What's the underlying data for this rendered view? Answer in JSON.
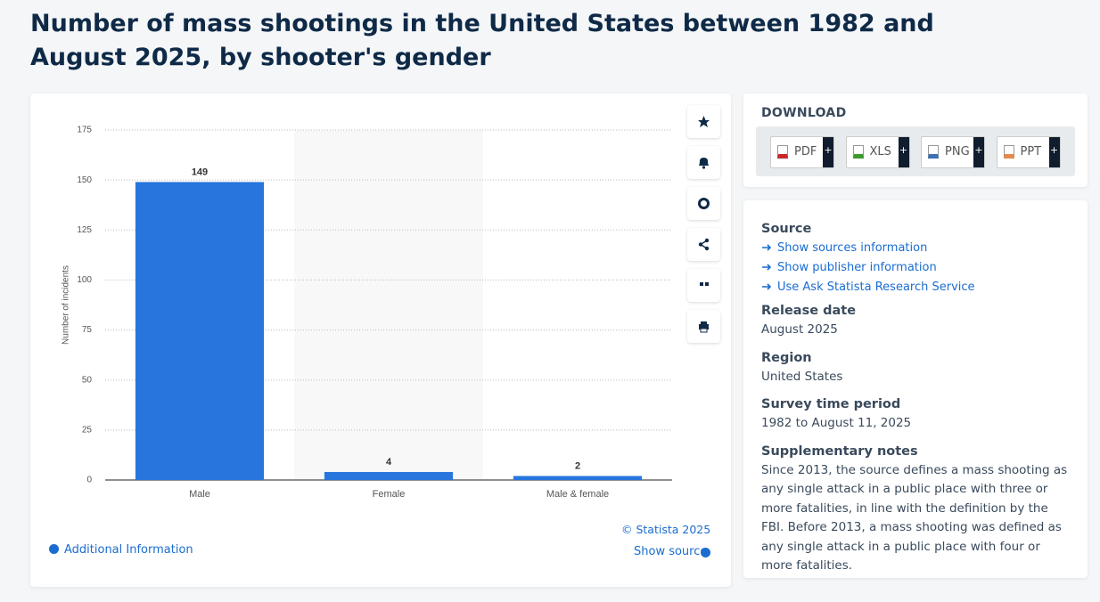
{
  "title": "Number of mass shootings in the United States between 1982 and August 2025, by shooter's gender",
  "chart_data": {
    "type": "bar",
    "y_label": "Number of incidents",
    "categories": [
      "Male",
      "Female",
      "Male & female"
    ],
    "values": [
      149,
      4,
      2
    ],
    "color": "#2876dd",
    "ylim": [
      0,
      175
    ],
    "yticks": [
      0,
      25,
      50,
      75,
      100,
      125,
      150,
      175
    ],
    "grid": true
  },
  "chart_footer": {
    "copyright": "© Statista 2025",
    "show_source": "Show source",
    "additional_info": "Additional Information"
  },
  "download": {
    "heading": "DOWNLOAD",
    "buttons": [
      {
        "label": "PDF",
        "more": "+"
      },
      {
        "label": "XLS",
        "more": "+"
      },
      {
        "label": "PNG",
        "more": "+"
      },
      {
        "label": "PPT",
        "more": "+"
      }
    ]
  },
  "details": {
    "source": {
      "heading": "Source",
      "links": [
        "Show sources information",
        "Show publisher information",
        "Use Ask Statista Research Service"
      ]
    },
    "release_date": {
      "heading": "Release date",
      "text": "August 2025"
    },
    "region": {
      "heading": "Region",
      "text": "United States"
    },
    "survey_period": {
      "heading": "Survey time period",
      "text": "1982 to August 11, 2025"
    },
    "notes": {
      "heading": "Supplementary notes",
      "text": "Since 2013, the source defines a mass shooting as any single attack in a public place with three or more fatalities, in line with the definition by the FBI. Before 2013, a mass shooting was defined as any single attack in a public place with four or more fatalities."
    }
  }
}
